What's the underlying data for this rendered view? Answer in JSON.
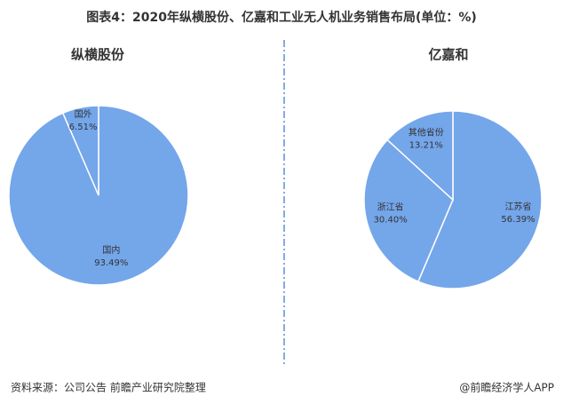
{
  "title": "图表4：2020年纵横股份、亿嘉和工业无人机业务销售布局(单位：%)",
  "source": "资料来源：公司公告 前瞻产业研究院整理",
  "credit": "@前瞻经济学人APP",
  "chart_data": [
    {
      "type": "pie",
      "title": "纵横股份",
      "categories": [
        "国内",
        "国外"
      ],
      "values": [
        93.49,
        6.51
      ],
      "value_labels": [
        "93.49%",
        "6.51%"
      ],
      "color": "#74a6ea"
    },
    {
      "type": "pie",
      "title": "亿嘉和",
      "categories": [
        "江苏省",
        "浙江省",
        "其他省份"
      ],
      "values": [
        56.39,
        30.4,
        13.21
      ],
      "value_labels": [
        "56.39%",
        "30.40%",
        "13.21%"
      ],
      "color": "#74a6ea"
    }
  ]
}
